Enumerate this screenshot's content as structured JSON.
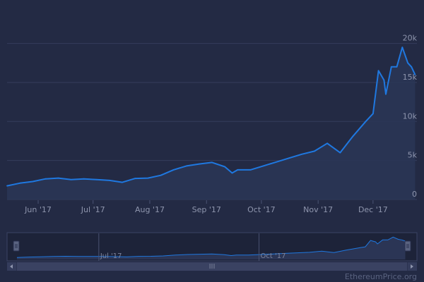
{
  "chart_data": {
    "type": "area",
    "y_unit": "USD",
    "x": [
      "2017-05-15",
      "2017-05-22",
      "2017-05-29",
      "2017-06-05",
      "2017-06-12",
      "2017-06-19",
      "2017-06-26",
      "2017-07-03",
      "2017-07-10",
      "2017-07-17",
      "2017-07-24",
      "2017-07-31",
      "2017-08-07",
      "2017-08-14",
      "2017-08-21",
      "2017-08-28",
      "2017-09-04",
      "2017-09-11",
      "2017-09-15",
      "2017-09-18",
      "2017-09-25",
      "2017-10-02",
      "2017-10-09",
      "2017-10-16",
      "2017-10-23",
      "2017-10-30",
      "2017-11-06",
      "2017-11-13",
      "2017-11-20",
      "2017-11-27",
      "2017-12-01",
      "2017-12-04",
      "2017-12-07",
      "2017-12-08",
      "2017-12-11",
      "2017-12-14",
      "2017-12-17",
      "2017-12-20",
      "2017-12-22",
      "2017-12-24"
    ],
    "values": [
      1750,
      2100,
      2300,
      2650,
      2750,
      2550,
      2650,
      2550,
      2450,
      2200,
      2700,
      2750,
      3100,
      3800,
      4300,
      4550,
      4750,
      4200,
      3400,
      3800,
      3800,
      4300,
      4800,
      5300,
      5800,
      6200,
      7200,
      6000,
      8100,
      10000,
      11000,
      16500,
      15300,
      13500,
      17000,
      17000,
      19500,
      17500,
      17000,
      16000
    ],
    "y_ticks": [
      0,
      5000,
      10000,
      15000,
      20000
    ],
    "y_tick_labels": [
      "0",
      "5k",
      "10k",
      "15k",
      "20k"
    ],
    "ylim": [
      0,
      21500
    ],
    "xlim": [
      "2017-05-15",
      "2017-12-25"
    ],
    "x_ticks": [
      "2017-06-01",
      "2017-07-01",
      "2017-08-01",
      "2017-09-01",
      "2017-10-01",
      "2017-11-01",
      "2017-12-01"
    ],
    "x_tick_labels": [
      "Jun '17",
      "Jul '17",
      "Aug '17",
      "Sep '17",
      "Oct '17",
      "Nov '17",
      "Dec '17"
    ],
    "grid": true,
    "series_color": "#1f78e0",
    "navigator": {
      "x_ticks": [
        "2017-07-01",
        "2017-10-01"
      ],
      "x_tick_labels": [
        "Jul '17",
        "Oct '17"
      ],
      "scrollbar_grip": "III"
    },
    "credit": "EthereumPrice.org"
  }
}
